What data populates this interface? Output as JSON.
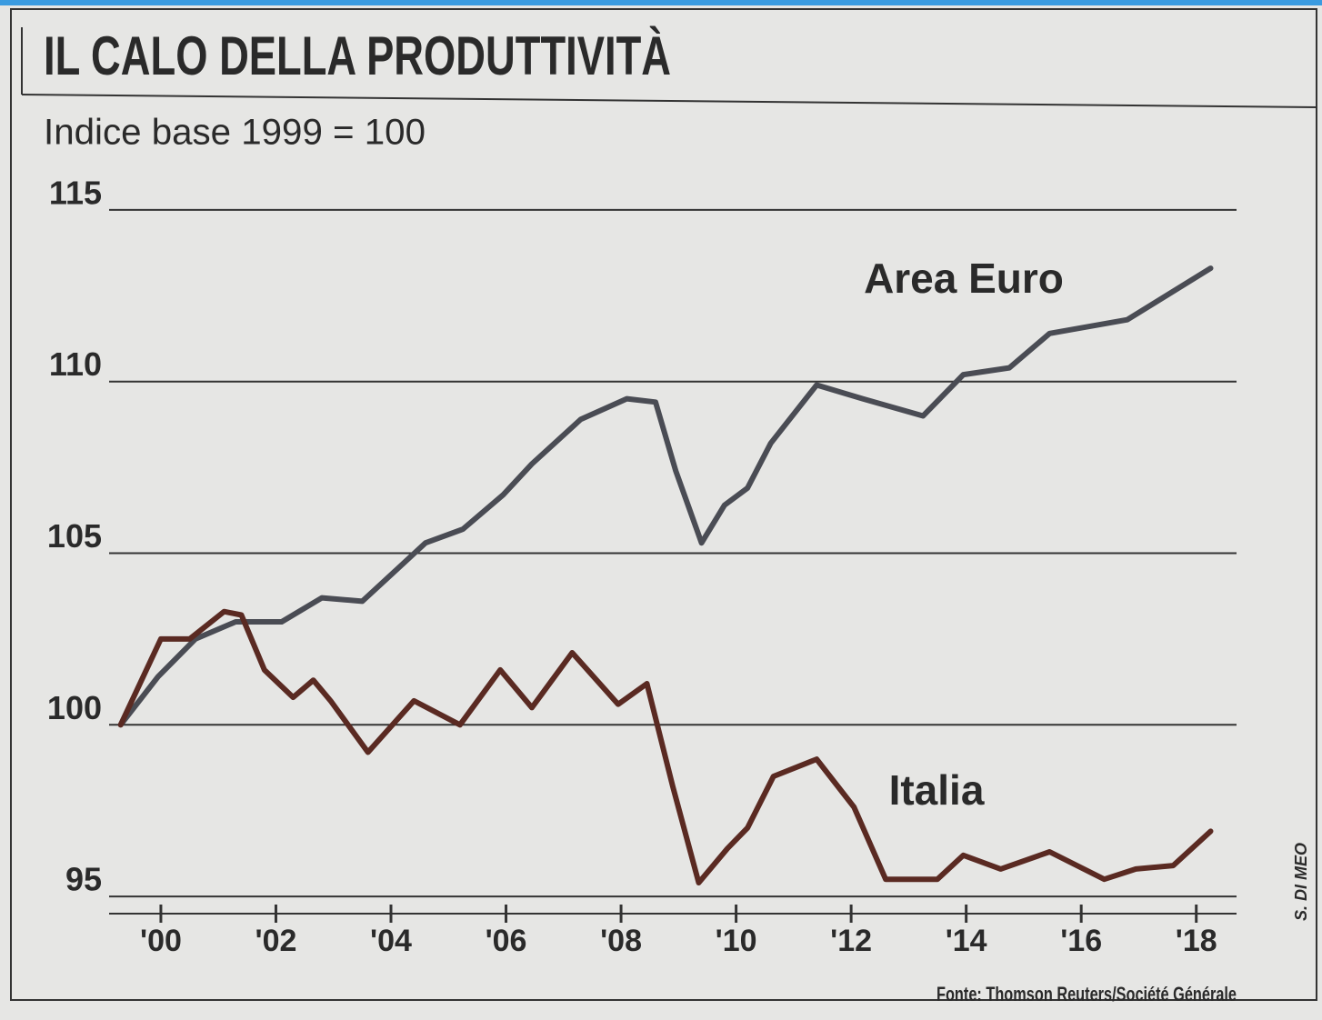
{
  "chart_data": {
    "type": "line",
    "title": "IL CALO DELLA PRODUTTIVITÀ",
    "subtitle": "Indice base 1999 = 100",
    "source": "Fonte: Thomson Reuters/Société Générale",
    "credit": "S. DI MEO",
    "xlim": [
      1999.1,
      2018.7
    ],
    "ylim": [
      94.5,
      115.5
    ],
    "xticks": [
      {
        "value": 2000,
        "label": "'00"
      },
      {
        "value": 2002,
        "label": "'02"
      },
      {
        "value": 2004,
        "label": "'04"
      },
      {
        "value": 2006,
        "label": "'06"
      },
      {
        "value": 2008,
        "label": "'08"
      },
      {
        "value": 2010,
        "label": "'10"
      },
      {
        "value": 2012,
        "label": "'12"
      },
      {
        "value": 2014,
        "label": "'14"
      },
      {
        "value": 2016,
        "label": "'16"
      },
      {
        "value": 2018,
        "label": "'18"
      }
    ],
    "yticks": [
      95,
      100,
      105,
      110,
      115
    ],
    "grid": true,
    "series": [
      {
        "name": "Area Euro",
        "color": "#4a4c54",
        "x": [
          1999.3,
          1999.95,
          2000.6,
          2001.3,
          2002.1,
          2002.8,
          2003.5,
          2004.15,
          2004.6,
          2005.25,
          2005.95,
          2006.45,
          2007.3,
          2008.1,
          2008.6,
          2008.95,
          2009.4,
          2009.8,
          2010.2,
          2010.6,
          2011.4,
          2012.2,
          2013.25,
          2013.95,
          2014.75,
          2015.45,
          2016.8,
          2018.25
        ],
        "values": [
          100,
          101.4,
          102.5,
          103.0,
          103.0,
          103.7,
          103.6,
          104.6,
          105.3,
          105.7,
          106.7,
          107.6,
          108.9,
          109.5,
          109.4,
          107.4,
          105.3,
          106.4,
          106.9,
          108.2,
          109.9,
          109.5,
          109.0,
          110.2,
          110.4,
          111.4,
          111.8,
          113.3
        ]
      },
      {
        "name": "Italia",
        "color": "#5a2a22",
        "x": [
          1999.3,
          2000.0,
          2000.5,
          2001.1,
          2001.4,
          2001.8,
          2002.3,
          2002.65,
          2002.95,
          2003.6,
          2004.4,
          2005.2,
          2005.9,
          2006.45,
          2007.15,
          2007.95,
          2008.45,
          2008.9,
          2009.35,
          2009.85,
          2010.2,
          2010.65,
          2011.4,
          2012.05,
          2012.6,
          2013.5,
          2013.95,
          2014.6,
          2015.45,
          2016.4,
          2016.95,
          2017.6,
          2018.25
        ],
        "values": [
          100,
          102.5,
          102.5,
          103.3,
          103.2,
          101.6,
          100.8,
          101.3,
          100.7,
          99.2,
          100.7,
          100.0,
          101.6,
          100.5,
          102.1,
          100.6,
          101.2,
          98.2,
          95.4,
          96.4,
          97.0,
          98.5,
          99.0,
          97.6,
          95.5,
          95.5,
          96.2,
          95.8,
          96.3,
          95.5,
          95.8,
          95.9,
          96.9
        ]
      }
    ]
  }
}
